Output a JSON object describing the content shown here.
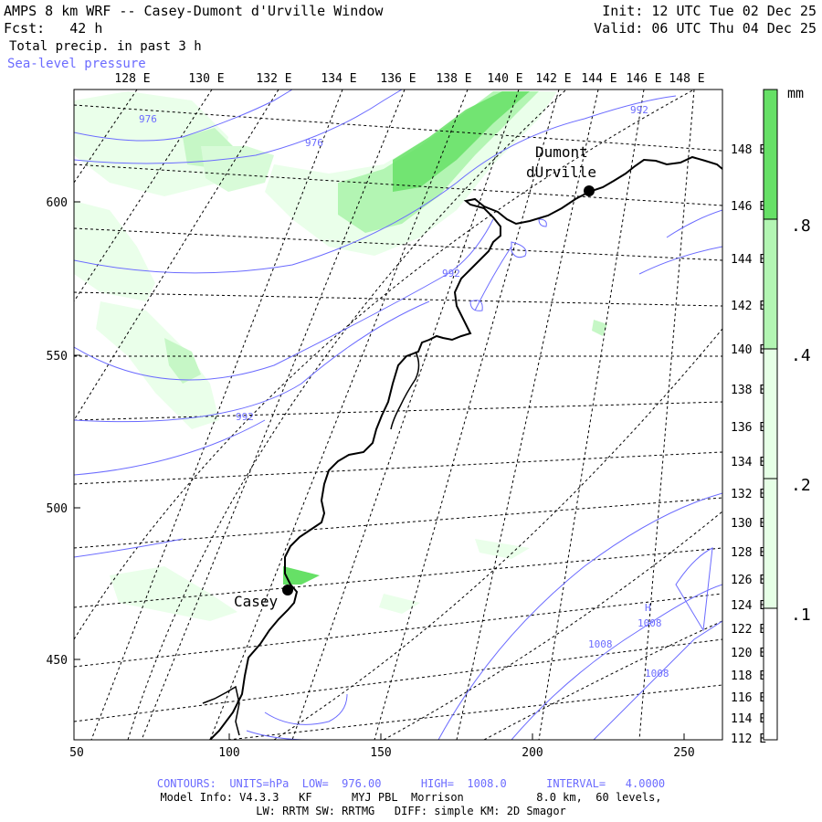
{
  "header": {
    "title": "AMPS 8 km WRF -- Casey-Dumont d'Urville Window",
    "fcst": "Fcst:   42 h",
    "field": "Total precip. in past 3 h",
    "overlay": "Sea-level pressure",
    "init": "Init: 12 UTC Tue 02 Dec 25",
    "valid": "Valid: 06 UTC Thu 04 Dec 25"
  },
  "map": {
    "top_lon_labels": [
      "128 E",
      "130 E",
      "132 E",
      "134 E",
      "136 E",
      "138 E",
      "140 E",
      "142 E",
      "144 E",
      "146 E",
      "148 E"
    ],
    "right_lat_labels": [
      "148 E",
      "146 E",
      "144 E",
      "142 E",
      "140 E",
      "138 E",
      "136 E",
      "134 E",
      "132 E",
      "130 E",
      "128 E",
      "126 E",
      "124 E",
      "122 E",
      "120 E",
      "118 E",
      "116 E",
      "114 E",
      "112 E"
    ],
    "left_y_labels": [
      "600",
      "550",
      "500",
      "450"
    ],
    "bottom_x_labels": [
      "50",
      "100",
      "150",
      "200",
      "250"
    ],
    "stations": [
      {
        "name": "Casey"
      },
      {
        "name": "Dumont",
        "name2": "dUrville"
      }
    ],
    "contour_labels": [
      "976",
      "976",
      "992",
      "992",
      "992",
      "1008",
      "1008",
      "1008",
      "H"
    ]
  },
  "colorbar": {
    "unit": "mm",
    "labels": [
      ".8",
      ".4",
      ".2",
      ".1"
    ],
    "levels": [
      0.1,
      0.2,
      0.4,
      0.8
    ],
    "colors": [
      "#ffffff",
      "#e6ffe6",
      "#b3f5b3",
      "#66e066"
    ]
  },
  "footer": {
    "contours": "CONTOURS:  UNITS=hPa  LOW=  976.00      HIGH=  1008.0      INTERVAL=   4.0000",
    "model": "Model Info: V4.3.3   KF      MYJ PBL  Morrison           8.0 km,  60 levels,",
    "physics": "LW: RRTM SW: RRTMG   DIFF: simple KM: 2D Smagor"
  }
}
